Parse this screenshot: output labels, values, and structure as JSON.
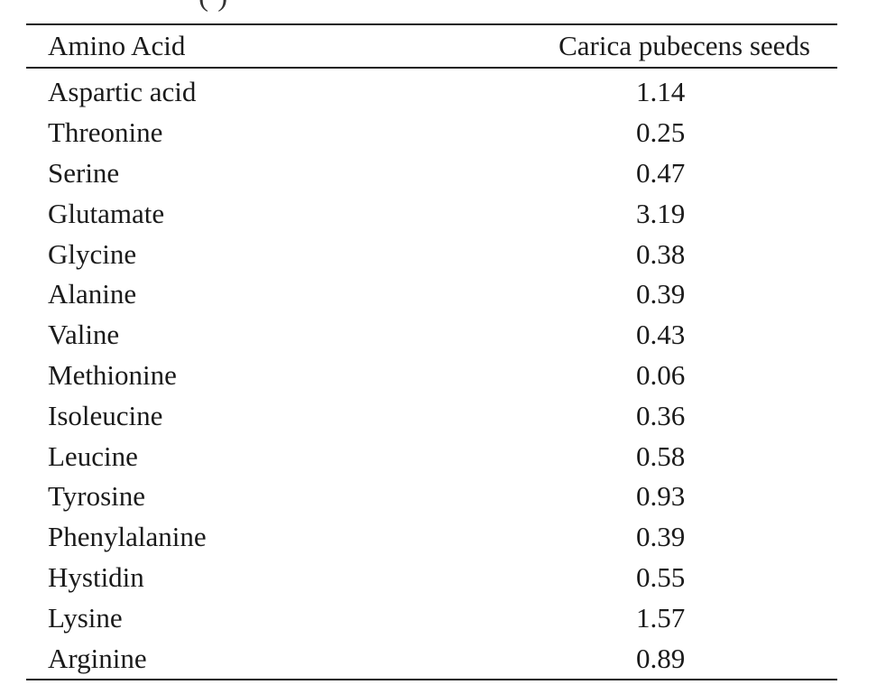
{
  "caption_fragment": "(         )",
  "table": {
    "headers": [
      "Amino Acid",
      "Carica pubecens seeds"
    ],
    "rows": [
      {
        "amino_acid": "Aspartic acid",
        "value": "1.14"
      },
      {
        "amino_acid": "Threonine",
        "value": "0.25"
      },
      {
        "amino_acid": "Serine",
        "value": "0.47"
      },
      {
        "amino_acid": "Glutamate",
        "value": "3.19"
      },
      {
        "amino_acid": "Glycine",
        "value": "0.38"
      },
      {
        "amino_acid": "Alanine",
        "value": "0.39"
      },
      {
        "amino_acid": "Valine",
        "value": "0.43"
      },
      {
        "amino_acid": "Methionine",
        "value": "0.06"
      },
      {
        "amino_acid": "Isoleucine",
        "value": "0.36"
      },
      {
        "amino_acid": "Leucine",
        "value": "0.58"
      },
      {
        "amino_acid": "Tyrosine",
        "value": "0.93"
      },
      {
        "amino_acid": "Phenylalanine",
        "value": "0.39"
      },
      {
        "amino_acid": "Hystidin",
        "value": "0.55"
      },
      {
        "amino_acid": "Lysine",
        "value": "1.57"
      },
      {
        "amino_acid": "Arginine",
        "value": "0.89"
      }
    ]
  }
}
